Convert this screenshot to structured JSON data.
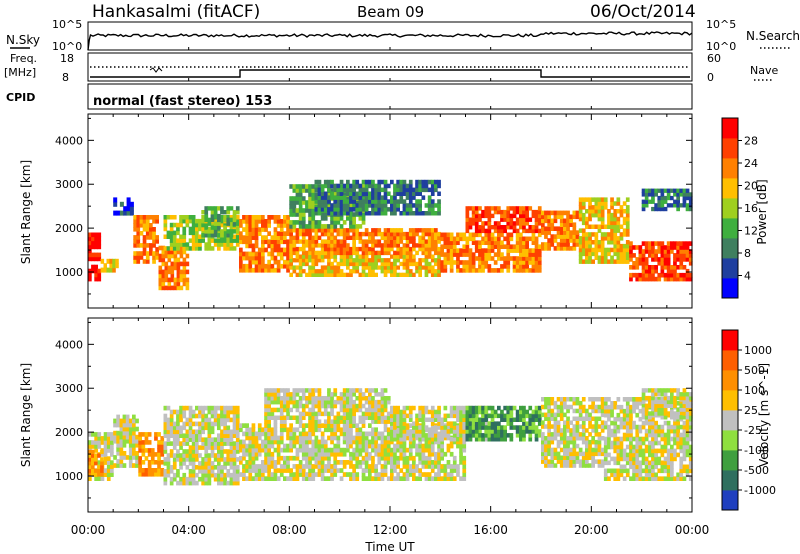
{
  "header": {
    "station": "Hankasalmi (fitACF)",
    "beam": "Beam 09",
    "date": "06/Oct/2014"
  },
  "strip_noise": {
    "left_label": "N.Sky",
    "right_label": "N.Search",
    "left_ticks": [
      "10^5",
      "10^0"
    ],
    "right_ticks": [
      "10^5",
      "10^0"
    ]
  },
  "strip_freq": {
    "left_label_1": "Freq.",
    "left_label_2": "[MHz]",
    "right_label": "Nave",
    "left_ticks": [
      "18",
      "8"
    ],
    "right_ticks": [
      "60",
      "0"
    ]
  },
  "strip_cpid": {
    "left_label": "CPID",
    "text": "normal (fast stereo) 153"
  },
  "colors": {
    "power_scale": [
      "#0000ff",
      "#1f3f9f",
      "#3f7f5f",
      "#3faf3f",
      "#9fcf1f",
      "#ffbf00",
      "#ff8000",
      "#ff4000",
      "#ff0000"
    ],
    "velocity_scale": [
      "#1f3fbf",
      "#2f6f5f",
      "#3f9f3f",
      "#8fdf3f",
      "#c0c0c0",
      "#ffbf00",
      "#ff8f00",
      "#ff5f00",
      "#ff0000"
    ]
  },
  "chart_data": [
    {
      "type": "heatmap",
      "panel": "power",
      "ylabel": "Slant Range [km]",
      "colorbar_label": "Power [dB]",
      "colorbar_ticks": [
        "28",
        "24",
        "20",
        "16",
        "12",
        "8",
        "4"
      ],
      "yticks": [
        "4000",
        "3000",
        "2000",
        "1000"
      ],
      "xlim": [
        "00:00",
        "24:00"
      ],
      "ylim": [
        180,
        4600
      ],
      "blocks": [
        [
          0.0,
          0.5,
          800,
          1900,
          8
        ],
        [
          0.5,
          1.2,
          1000,
          1300,
          5
        ],
        [
          1.0,
          1.8,
          2300,
          2700,
          1
        ],
        [
          1.8,
          2.8,
          1200,
          2300,
          6
        ],
        [
          2.8,
          4.0,
          600,
          1600,
          6
        ],
        [
          3.0,
          6.0,
          1500,
          2300,
          4
        ],
        [
          4.5,
          6.0,
          1800,
          2500,
          3
        ],
        [
          6.0,
          8.0,
          1000,
          2300,
          6
        ],
        [
          8.0,
          14.0,
          900,
          1400,
          5
        ],
        [
          8.0,
          14.0,
          1400,
          2000,
          6
        ],
        [
          8.0,
          11.0,
          2000,
          3000,
          3
        ],
        [
          9.0,
          14.0,
          2300,
          3100,
          2
        ],
        [
          14.0,
          18.0,
          1000,
          1900,
          6
        ],
        [
          15.0,
          18.0,
          1900,
          2500,
          7
        ],
        [
          18.0,
          19.5,
          1500,
          2400,
          6
        ],
        [
          19.5,
          21.5,
          1200,
          2700,
          5
        ],
        [
          21.5,
          24.0,
          800,
          1700,
          7
        ],
        [
          22.0,
          24.0,
          2400,
          2900,
          2
        ]
      ]
    },
    {
      "type": "heatmap",
      "panel": "velocity",
      "ylabel": "Slant Range [km]",
      "colorbar_label": "Velocity [m s^-1]",
      "colorbar_ticks": [
        "1000",
        "500",
        "100",
        "25",
        "-25",
        "-100",
        "-500",
        "-1000"
      ],
      "yticks": [
        "4000",
        "3000",
        "2000",
        "1000"
      ],
      "xlim": [
        "00:00",
        "24:00"
      ],
      "ylim": [
        180,
        4600
      ],
      "blocks": [
        [
          0.0,
          1.0,
          900,
          2000,
          4
        ],
        [
          0.0,
          0.6,
          1000,
          1600,
          6
        ],
        [
          1.0,
          2.0,
          1200,
          2400,
          4
        ],
        [
          2.0,
          3.0,
          1000,
          2000,
          6
        ],
        [
          3.0,
          6.0,
          800,
          2600,
          4
        ],
        [
          6.0,
          15.0,
          900,
          2200,
          4
        ],
        [
          7.0,
          12.0,
          2200,
          3000,
          4
        ],
        [
          12.0,
          16.0,
          1800,
          2600,
          4
        ],
        [
          15.0,
          18.0,
          1800,
          2600,
          2
        ],
        [
          18.0,
          20.5,
          1200,
          2800,
          4
        ],
        [
          20.5,
          24.0,
          900,
          2800,
          4
        ],
        [
          22.0,
          24.0,
          2300,
          3000,
          4
        ]
      ]
    }
  ],
  "xaxis": {
    "ticks": [
      "00:00",
      "04:00",
      "08:00",
      "12:00",
      "16:00",
      "20:00",
      "00:00"
    ],
    "label": "Time UT"
  }
}
